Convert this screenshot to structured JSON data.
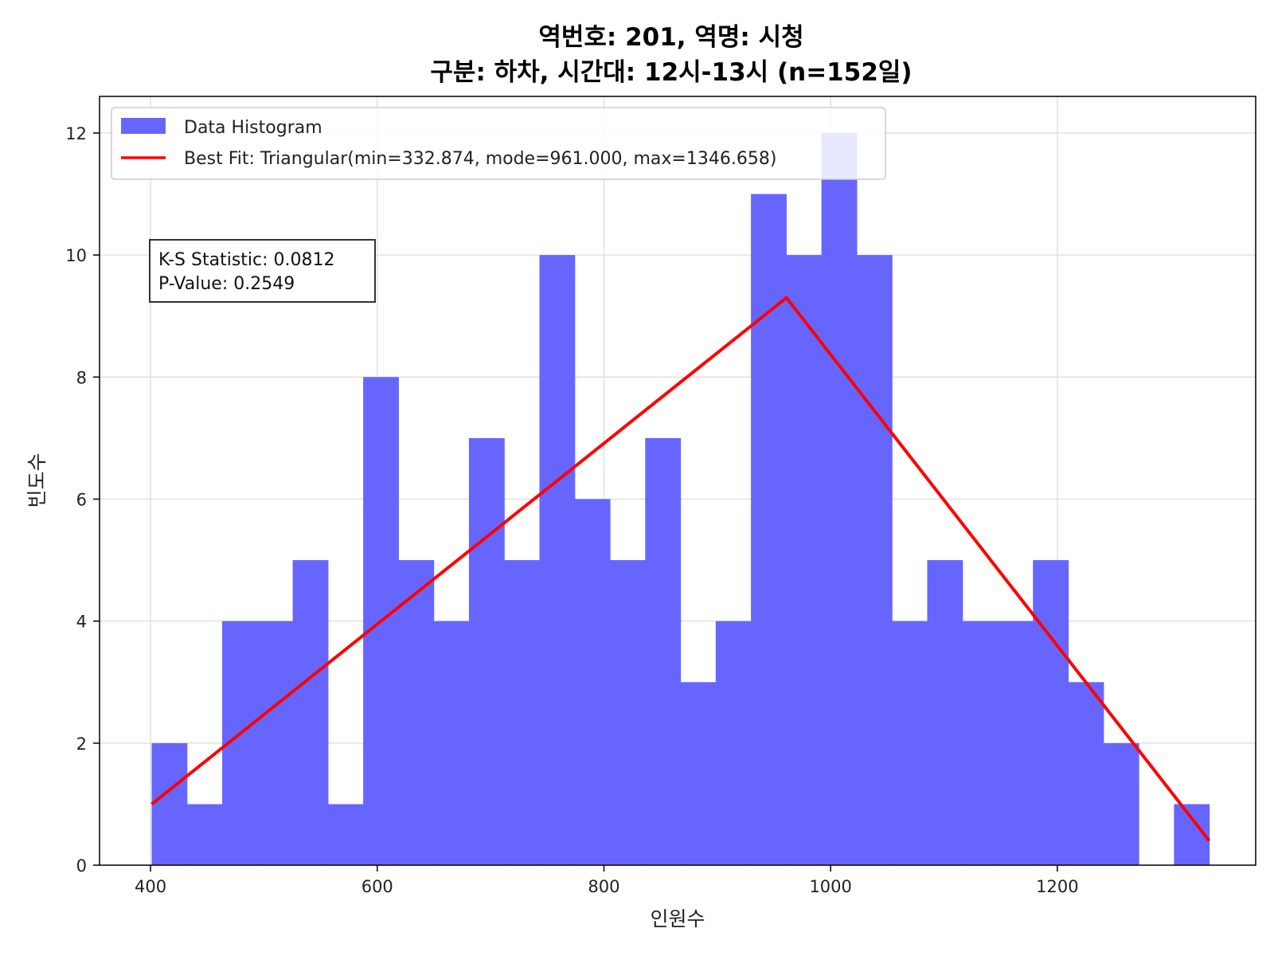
{
  "chart_data": {
    "type": "bar",
    "title_line1": "역번호: 201, 역명: 시청",
    "title_line2": "구분: 하차, 시간대: 12시-13시 (n=152일)",
    "xlabel": "인원수",
    "ylabel": "빈도수",
    "xlim": [
      355,
      1375
    ],
    "ylim": [
      0,
      12.6
    ],
    "x_ticks": [
      400,
      600,
      800,
      1000,
      1200
    ],
    "y_ticks": [
      0,
      2,
      4,
      6,
      8,
      10,
      12
    ],
    "grid": true,
    "legend_position": "top-left",
    "series": [
      {
        "name": "Data Histogram",
        "kind": "histogram",
        "color": "#6666ff",
        "bin_width": 31.1,
        "bin_start": 401,
        "counts": [
          2,
          1,
          4,
          4,
          5,
          1,
          8,
          5,
          4,
          7,
          5,
          10,
          6,
          5,
          7,
          3,
          4,
          11,
          10,
          12,
          10,
          4,
          5,
          4,
          4,
          5,
          3,
          2,
          0,
          1
        ]
      },
      {
        "name": "Best Fit: Triangular(min=332.874, mode=961.000, max=1346.658)",
        "kind": "line",
        "color": "#ff0000",
        "points": [
          [
            401,
            1.0
          ],
          [
            961,
            9.3
          ],
          [
            1334,
            0.4
          ]
        ]
      }
    ],
    "annotation": {
      "ks_line": "K-S Statistic: 0.0812",
      "p_line": "P-Value: 0.2549"
    }
  }
}
